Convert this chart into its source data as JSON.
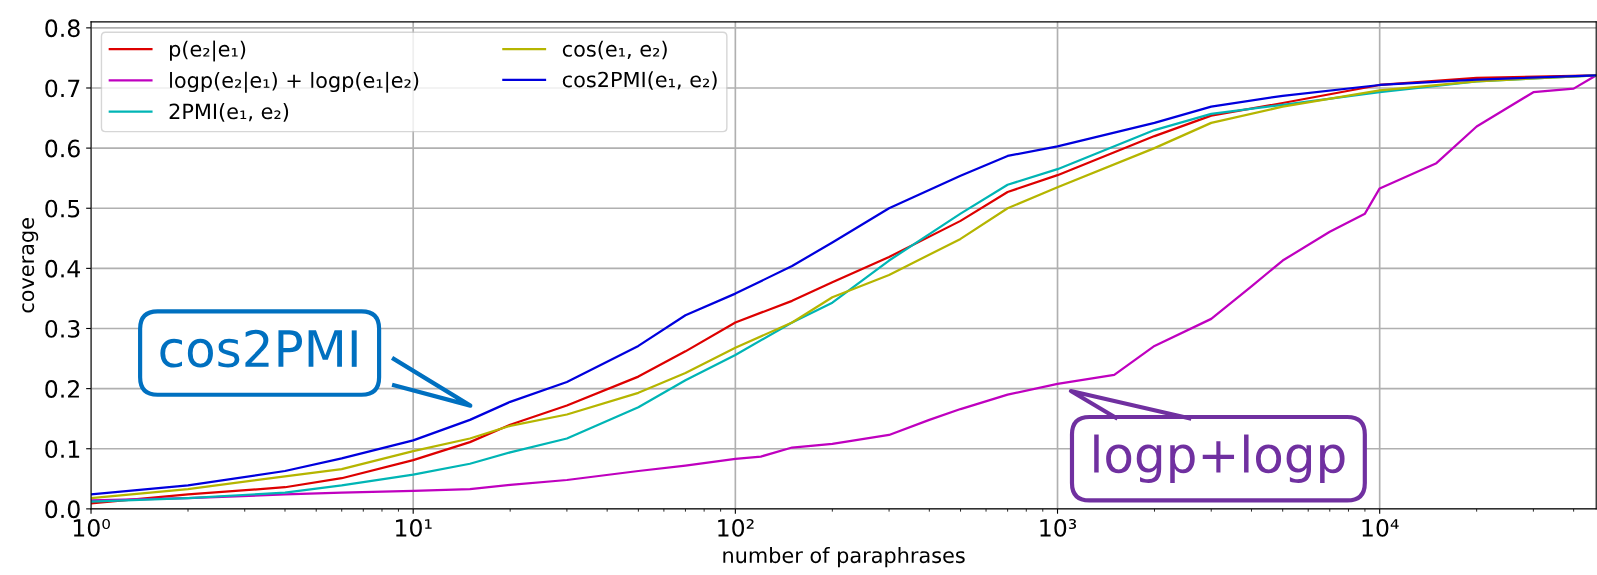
{
  "chart_data": {
    "type": "line",
    "xlabel": "number of paraphrases",
    "ylabel": "coverage",
    "log": "x",
    "grid": true,
    "legend": "top left",
    "line_style": "solid",
    "marker": "none",
    "xlim": [
      1,
      47000
    ],
    "xticks": [
      {
        "value": 1,
        "label": "10⁰"
      },
      {
        "value": 10,
        "label": "10¹"
      },
      {
        "value": 100,
        "label": "10²"
      },
      {
        "value": 1000,
        "label": "10³"
      },
      {
        "value": 10000,
        "label": "10⁴"
      }
    ],
    "ylim": [
      0,
      0.81
    ],
    "yticks": [
      {
        "value": 0,
        "label": "0.0"
      },
      0.1,
      0.2,
      0.3,
      0.4,
      0.5,
      0.6,
      0.7,
      0.8
    ],
    "series": [
      {
        "name": "p(e₂|e₁)",
        "color": "#dd0000",
        "x": [
          1,
          2,
          4,
          6,
          10,
          15,
          20,
          30,
          50,
          70,
          100,
          150,
          200,
          300,
          500,
          700,
          1000,
          2000,
          3000,
          5000,
          10000,
          20000,
          47000
        ],
        "values": [
          0.009,
          0.024,
          0.036,
          0.051,
          0.081,
          0.111,
          0.14,
          0.172,
          0.22,
          0.262,
          0.31,
          0.346,
          0.377,
          0.419,
          0.479,
          0.527,
          0.555,
          0.62,
          0.654,
          0.675,
          0.705,
          0.717,
          0.721
        ]
      },
      {
        "name": "logp(e₂|e₁) + logp(e₁|e₂)",
        "color": "#bf00bf",
        "x": [
          1,
          2,
          4,
          6,
          10,
          15,
          20,
          30,
          50,
          70,
          100,
          120,
          150,
          200,
          300,
          400,
          500,
          700,
          1000,
          1500,
          2000,
          3000,
          4000,
          5000,
          7000,
          9000,
          10000,
          15000,
          20000,
          30000,
          40000,
          47000
        ],
        "values": [
          0.014,
          0.018,
          0.024,
          0.027,
          0.03,
          0.033,
          0.04,
          0.048,
          0.063,
          0.072,
          0.083,
          0.087,
          0.102,
          0.108,
          0.123,
          0.148,
          0.166,
          0.19,
          0.208,
          0.223,
          0.271,
          0.316,
          0.37,
          0.413,
          0.461,
          0.491,
          0.533,
          0.575,
          0.636,
          0.693,
          0.699,
          0.721
        ]
      },
      {
        "name": "2PMI(e₁, e₂)",
        "color": "#00b5b5",
        "x": [
          1,
          2,
          4,
          6,
          10,
          15,
          20,
          30,
          50,
          70,
          100,
          150,
          200,
          300,
          500,
          700,
          1000,
          2000,
          3000,
          5000,
          10000,
          20000,
          47000
        ],
        "values": [
          0.012,
          0.018,
          0.027,
          0.039,
          0.057,
          0.075,
          0.094,
          0.117,
          0.169,
          0.214,
          0.256,
          0.31,
          0.343,
          0.413,
          0.491,
          0.539,
          0.565,
          0.63,
          0.657,
          0.672,
          0.693,
          0.711,
          0.721
        ]
      },
      {
        "name": "cos(e₁, e₂)",
        "color": "#b5b500",
        "x": [
          1,
          2,
          4,
          6,
          10,
          15,
          20,
          30,
          50,
          70,
          100,
          150,
          200,
          300,
          500,
          700,
          1000,
          2000,
          3000,
          5000,
          10000,
          20000,
          47000
        ],
        "values": [
          0.018,
          0.033,
          0.054,
          0.066,
          0.096,
          0.117,
          0.138,
          0.157,
          0.193,
          0.226,
          0.268,
          0.31,
          0.352,
          0.389,
          0.449,
          0.5,
          0.535,
          0.6,
          0.642,
          0.669,
          0.696,
          0.711,
          0.721
        ]
      },
      {
        "name": "cos2PMI(e₁, e₂)",
        "color": "#0000dd",
        "x": [
          1,
          2,
          4,
          6,
          10,
          15,
          20,
          30,
          50,
          70,
          100,
          150,
          200,
          300,
          500,
          700,
          1000,
          2000,
          3000,
          5000,
          10000,
          20000,
          47000
        ],
        "values": [
          0.024,
          0.039,
          0.063,
          0.084,
          0.114,
          0.148,
          0.178,
          0.211,
          0.271,
          0.322,
          0.358,
          0.404,
          0.443,
          0.5,
          0.554,
          0.587,
          0.603,
          0.642,
          0.669,
          0.687,
          0.705,
          0.714,
          0.721
        ]
      }
    ],
    "annotations": [
      "cos2PMI",
      "logp+logp"
    ]
  }
}
